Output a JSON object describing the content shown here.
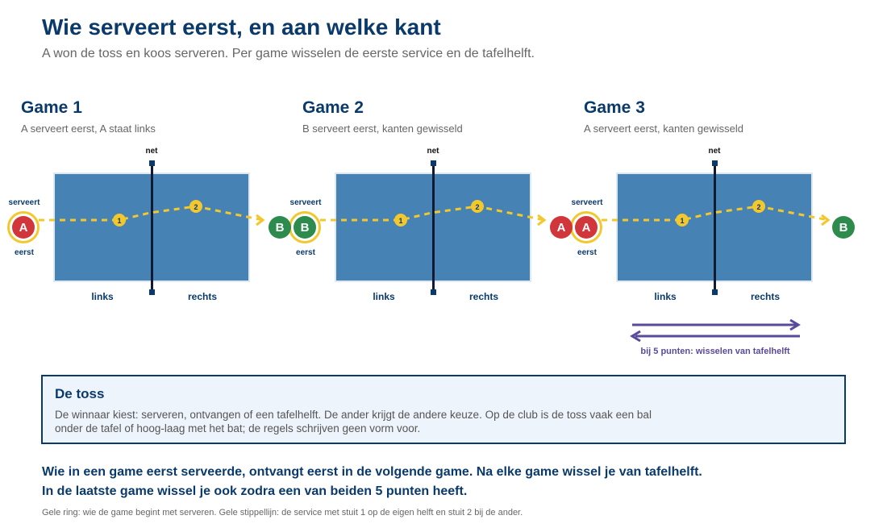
{
  "title": "Wie serveert eerst, en aan welke kant",
  "subtitle": "A won de toss en koos serveren. Per game wisselen de eerste service en de tafelhelft.",
  "colors": {
    "navy": "#0a3a6b",
    "table": "#4682b4",
    "player_a": "#d0363a",
    "player_b": "#2e8b4e",
    "ring": "#f2c82e",
    "switch": "#5a4a9c"
  },
  "games": [
    {
      "title": "Game 1",
      "desc": "A serveert eerst, A staat links",
      "net": "net",
      "left": "links",
      "right": "rechts",
      "server": "A",
      "receiver": "B",
      "serve_top": "serveert",
      "serve_bottom": "eerst",
      "ball1": "1",
      "ball2": "2"
    },
    {
      "title": "Game 2",
      "desc": "B serveert eerst, kanten gewisseld",
      "net": "net",
      "left": "links",
      "right": "rechts",
      "server": "B",
      "receiver": "A",
      "serve_top": "serveert",
      "serve_bottom": "eerst",
      "ball1": "1",
      "ball2": "2"
    },
    {
      "title": "Game 3",
      "desc": "A serveert eerst, kanten gewisseld",
      "net": "net",
      "left": "links",
      "right": "rechts",
      "server": "A",
      "receiver": "B",
      "serve_top": "serveert",
      "serve_bottom": "eerst",
      "ball1": "1",
      "ball2": "2"
    }
  ],
  "switch_label": "bij 5 punten: wisselen van tafelhelft",
  "toss": {
    "title": "De toss",
    "text": "De winnaar kiest: serveren, ontvangen of een tafelhelft. De ander krijgt de andere keuze. Op de club is de toss vaak een bal onder de tafel of hoog-laag met het bat; de regels schrijven geen vorm voor."
  },
  "summary_line1": "Wie in een game eerst serveerde, ontvangt eerst in de volgende game. Na elke game wissel je van tafelhelft.",
  "summary_line2": "In de laatste game wissel je ook zodra een van beiden 5 punten heeft.",
  "footnote": "Gele ring: wie de game begint met serveren. Gele stippellijn: de service met stuit 1 op de eigen helft en stuit 2 bij de ander."
}
